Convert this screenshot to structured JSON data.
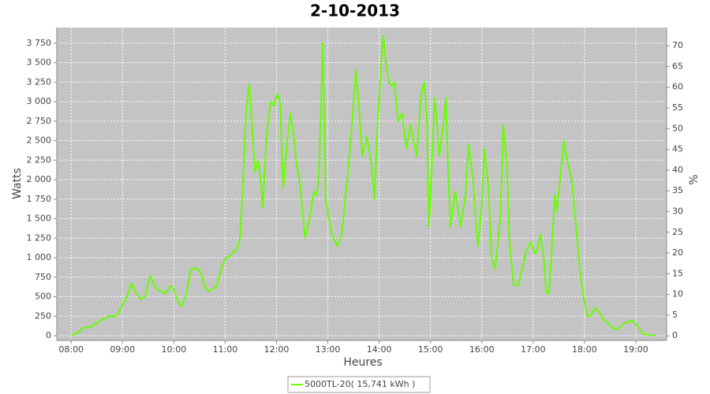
{
  "chart_data": {
    "type": "line",
    "title": "2-10-2013",
    "xlabel": "Heures",
    "ylabel": "Watts",
    "y2label": "%",
    "x": [
      8.0,
      8.15,
      8.23,
      8.38,
      8.46,
      8.61,
      8.77,
      8.84,
      8.92,
      9.0,
      9.08,
      9.17,
      9.26,
      9.35,
      9.44,
      9.54,
      9.63,
      9.69,
      9.77,
      9.84,
      9.94,
      10.0,
      10.09,
      10.15,
      10.24,
      10.33,
      10.43,
      10.52,
      10.61,
      10.67,
      10.76,
      10.83,
      10.92,
      11.01,
      11.1,
      11.16,
      11.23,
      11.29,
      11.35,
      11.41,
      11.47,
      11.53,
      11.58,
      11.64,
      11.69,
      11.73,
      11.81,
      11.89,
      11.95,
      12.02,
      12.07,
      12.13,
      12.21,
      12.27,
      12.33,
      12.39,
      12.45,
      12.52,
      12.56,
      12.64,
      12.73,
      12.78,
      12.82,
      12.87,
      12.9,
      12.93,
      12.96,
      13.02,
      13.08,
      13.18,
      13.27,
      13.38,
      13.47,
      13.55,
      13.61,
      13.67,
      13.76,
      13.85,
      13.91,
      13.96,
      14.04,
      14.08,
      14.14,
      14.19,
      14.25,
      14.3,
      14.37,
      14.45,
      14.53,
      14.61,
      14.73,
      14.82,
      14.88,
      14.93,
      14.97,
      15.04,
      15.08,
      15.13,
      15.17,
      15.25,
      15.3,
      15.34,
      15.39,
      15.48,
      15.59,
      15.68,
      15.74,
      15.83,
      15.88,
      15.93,
      16.0,
      16.05,
      16.13,
      16.19,
      16.26,
      16.36,
      16.42,
      16.49,
      16.54,
      16.62,
      16.71,
      16.79,
      16.85,
      16.91,
      16.96,
      17.03,
      17.08,
      17.14,
      17.2,
      17.26,
      17.31,
      17.37,
      17.42,
      17.46,
      17.54,
      17.6,
      17.68,
      17.75,
      17.85,
      17.91,
      17.98,
      18.06,
      18.11,
      18.2,
      18.29,
      18.38,
      18.48,
      18.55,
      18.63,
      18.75,
      18.92,
      19.0,
      19.06,
      19.14,
      19.29,
      19.37
    ],
    "series": [
      {
        "name": "5000TL-20( 15,741 kWh )",
        "color": "#66ff00",
        "values": [
          0,
          50,
          100,
          110,
          150,
          210,
          260,
          240,
          290,
          400,
          480,
          670,
          560,
          470,
          500,
          770,
          640,
          580,
          570,
          540,
          640,
          600,
          420,
          380,
          520,
          850,
          870,
          820,
          620,
          570,
          600,
          630,
          850,
          1000,
          1020,
          1080,
          1100,
          1250,
          2000,
          2900,
          3230,
          2600,
          2100,
          2250,
          2000,
          1650,
          2600,
          3000,
          2950,
          3100,
          3000,
          1900,
          2500,
          2850,
          2600,
          2200,
          2000,
          1500,
          1250,
          1500,
          1850,
          1800,
          2000,
          3000,
          3750,
          2800,
          1750,
          1500,
          1300,
          1150,
          1300,
          2000,
          2700,
          3400,
          2900,
          2300,
          2550,
          2200,
          1750,
          2600,
          3500,
          3850,
          3450,
          3250,
          3200,
          3250,
          2750,
          2850,
          2400,
          2700,
          2300,
          3100,
          3250,
          2800,
          1400,
          2400,
          3050,
          2700,
          2300,
          2700,
          3050,
          2200,
          1400,
          1850,
          1400,
          1800,
          2450,
          2000,
          1500,
          1150,
          1700,
          2400,
          1900,
          1000,
          850,
          1500,
          2700,
          2200,
          1200,
          650,
          650,
          850,
          1050,
          1150,
          1200,
          1050,
          1100,
          1300,
          1050,
          550,
          550,
          1200,
          1800,
          1600,
          2100,
          2500,
          2200,
          2000,
          1300,
          850,
          500,
          250,
          250,
          350,
          300,
          200,
          150,
          100,
          80,
          150,
          200,
          150,
          100,
          20,
          10,
          0
        ]
      }
    ],
    "xlim": [
      7.72,
      19.6
    ],
    "xticks": [
      {
        "value": 8,
        "label": "08:00"
      },
      {
        "value": 9,
        "label": "09:00"
      },
      {
        "value": 10,
        "label": "10:00"
      },
      {
        "value": 11,
        "label": "11:00"
      },
      {
        "value": 12,
        "label": "12:00"
      },
      {
        "value": 13,
        "label": "13:00"
      },
      {
        "value": 14,
        "label": "14:00"
      },
      {
        "value": 15,
        "label": "15:00"
      },
      {
        "value": 16,
        "label": "16:00"
      },
      {
        "value": 17,
        "label": "17:00"
      },
      {
        "value": 18,
        "label": "18:00"
      },
      {
        "value": 19,
        "label": "19:00"
      }
    ],
    "ylim": [
      -60,
      3950
    ],
    "yticks": [
      0,
      250,
      500,
      750,
      {
        "value": 1000,
        "label": "1 000"
      },
      {
        "value": 1250,
        "label": "1 250"
      },
      {
        "value": 1500,
        "label": "1 500"
      },
      {
        "value": 1750,
        "label": "1 750"
      },
      {
        "value": 2000,
        "label": "2 000"
      },
      {
        "value": 2250,
        "label": "2 250"
      },
      {
        "value": 2500,
        "label": "2 500"
      },
      {
        "value": 2750,
        "label": "2 750"
      },
      {
        "value": 3000,
        "label": "3 000"
      },
      {
        "value": 3250,
        "label": "3 250"
      },
      {
        "value": 3500,
        "label": "3 500"
      },
      {
        "value": 3750,
        "label": "3 750"
      }
    ],
    "y2lim": [
      -1.1,
      74.4
    ],
    "y2ticks": [
      0,
      5,
      10,
      15,
      20,
      25,
      30,
      35,
      40,
      45,
      50,
      55,
      60,
      65,
      70
    ],
    "grid": true,
    "legend": "bottom"
  }
}
